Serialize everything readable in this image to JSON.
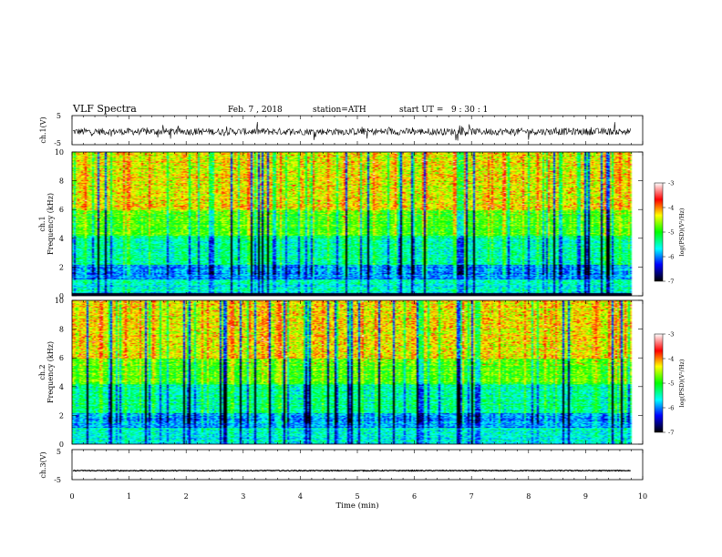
{
  "header": {
    "title": "VLF Spectra",
    "date": "Feb. 7 , 2018",
    "station": "station=ATH",
    "start": "start UT =   9 : 30 : 1"
  },
  "chart_data": [
    {
      "type": "line",
      "panel": "ch1-waveform",
      "ylabel": "ch.1(V)",
      "ylim": [
        -5,
        5
      ],
      "y_ticklabels": [
        "5",
        "-5"
      ],
      "description_values": {
        "baseline_v": -0.5,
        "noise_amplitude_v": 1.2
      }
    },
    {
      "type": "heatmap",
      "panel": "ch1-spectrogram",
      "ylabel_top": "ch.1",
      "ylabel": "Frequency (kHz)",
      "ylim": [
        0,
        10
      ],
      "y_ticklabels": [
        "0",
        "2",
        "4",
        "6",
        "8",
        "10"
      ],
      "xlim": [
        0,
        10
      ],
      "data_end_min": 9.8,
      "colorbar": {
        "label": "log(PSD)(V²/Hz)",
        "range": [
          -7,
          -3
        ],
        "ticklabels": [
          "-3",
          "-4",
          "-5",
          "-6",
          "-7"
        ],
        "colors": [
          "#000000",
          "#0000ff",
          "#00ffff",
          "#00ff00",
          "#ffff00",
          "#ff0000",
          "#ffffff"
        ]
      }
    },
    {
      "type": "heatmap",
      "panel": "ch2-spectrogram",
      "ylabel_top": "ch.2",
      "ylabel": "Frequency (kHz)",
      "ylim": [
        0,
        10
      ],
      "y_ticklabels": [
        "0",
        "2",
        "4",
        "6",
        "8",
        "10"
      ],
      "xlim": [
        0,
        10
      ],
      "data_end_min": 9.8,
      "colorbar": {
        "label": "log(PSD)(V²/Hz)",
        "range": [
          -7,
          -3
        ],
        "ticklabels": [
          "-3",
          "-4",
          "-5",
          "-6",
          "-7"
        ],
        "colors": [
          "#000000",
          "#0000ff",
          "#00ffff",
          "#00ff00",
          "#ffff00",
          "#ff0000",
          "#ffffff"
        ]
      }
    },
    {
      "type": "line",
      "panel": "ch3-waveform",
      "ylabel": "ch.3(V)",
      "ylim": [
        -5,
        5
      ],
      "y_ticklabels": [
        "5",
        "-5"
      ],
      "description_values": {
        "baseline_v": -2.0,
        "noise_amplitude_v": 0.15
      }
    }
  ],
  "xaxis": {
    "label": "Time (min)",
    "range": [
      0,
      10
    ],
    "ticklabels": [
      "0",
      "1",
      "2",
      "3",
      "4",
      "5",
      "6",
      "7",
      "8",
      "9",
      "10"
    ]
  }
}
